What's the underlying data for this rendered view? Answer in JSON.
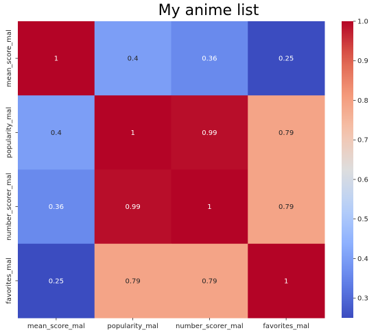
{
  "chart_data": {
    "type": "heatmap",
    "title": "My anime list",
    "x_labels": [
      "mean_score_mal",
      "popularity_mal",
      "number_scorer_mal",
      "favorites_mal"
    ],
    "y_labels": [
      "mean_score_mal",
      "popularity_mal",
      "number_scorer_mal",
      "favorites_mal"
    ],
    "values": [
      [
        1,
        0.4,
        0.36,
        0.25
      ],
      [
        0.4,
        1,
        0.99,
        0.79
      ],
      [
        0.36,
        0.99,
        1,
        0.79
      ],
      [
        0.25,
        0.79,
        0.79,
        1
      ]
    ],
    "annotations": [
      [
        "1",
        "0.4",
        "0.36",
        "0.25"
      ],
      [
        "0.4",
        "1",
        "0.99",
        "0.79"
      ],
      [
        "0.36",
        "0.99",
        "1",
        "0.79"
      ],
      [
        "0.25",
        "0.79",
        "0.79",
        "1"
      ]
    ],
    "colormap": "coolwarm",
    "colorbar": {
      "vmin": 0.25,
      "vmax": 1.0,
      "ticks": [
        0.3,
        0.4,
        0.5,
        0.6,
        0.7,
        0.8,
        0.9,
        1.0
      ],
      "tick_labels": [
        "0.3",
        "0.4",
        "0.5",
        "0.6",
        "0.7",
        "0.8",
        "0.9",
        "1.0"
      ]
    }
  }
}
